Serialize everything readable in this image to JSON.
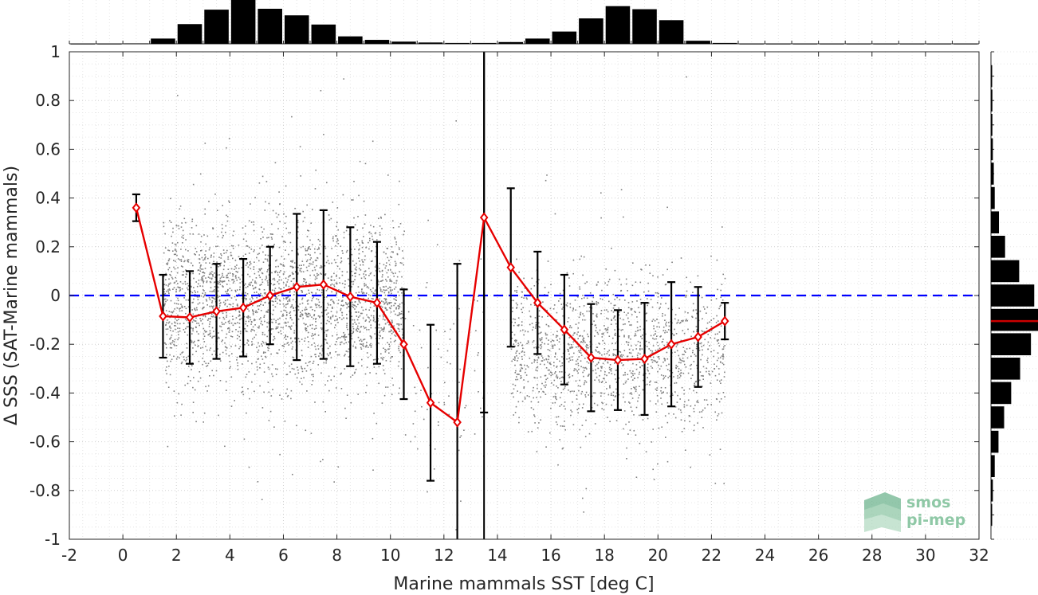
{
  "chart_data": {
    "type": "scatter",
    "title": "",
    "xlabel": "Marine mammals SST [deg C]",
    "ylabel": "Δ SSS (SAT-Marine mammals)",
    "xlim": [
      -2,
      32
    ],
    "ylim": [
      -1,
      1
    ],
    "x_ticks": [
      -2,
      0,
      2,
      4,
      6,
      8,
      10,
      12,
      14,
      16,
      18,
      20,
      22,
      24,
      26,
      28,
      30,
      32
    ],
    "y_ticks": [
      -1,
      -0.8,
      -0.6,
      -0.4,
      -0.2,
      0,
      0.2,
      0.4,
      0.6,
      0.8,
      1
    ],
    "y_tick_labels": [
      "-1",
      "-0.8",
      "-0.6",
      "-0.4",
      "-0.2",
      "0",
      "0.2",
      "0.4",
      "0.6",
      "0.8",
      "1"
    ],
    "grid": true,
    "zero_line": {
      "y": 0,
      "style": "dashed",
      "color": "#0000ff"
    },
    "vertical_line": {
      "x": 13.5,
      "color": "#000000"
    },
    "scatter_color": "#808080",
    "scatter_clusters": [
      {
        "x_range": [
          1.5,
          10.5
        ],
        "y_center": -0.02,
        "y_spread": 0.17,
        "weight": 0.62
      },
      {
        "x_range": [
          14.5,
          22.5
        ],
        "y_center": -0.23,
        "y_spread": 0.15,
        "weight": 0.36
      },
      {
        "x_range": [
          10.5,
          13.5
        ],
        "y_center": -0.35,
        "y_spread": 0.25,
        "weight": 0.02
      }
    ],
    "binned_series": {
      "color": "#e60000",
      "marker": "diamond",
      "x": [
        0.5,
        1.5,
        2.5,
        3.5,
        4.5,
        5.5,
        6.5,
        7.5,
        8.5,
        9.5,
        10.5,
        11.5,
        12.5,
        13.5,
        14.5,
        15.5,
        16.5,
        17.5,
        18.5,
        19.5,
        20.5,
        21.5,
        22.5
      ],
      "mean": [
        0.36,
        -0.085,
        -0.09,
        -0.065,
        -0.05,
        0.0,
        0.035,
        0.045,
        -0.005,
        -0.03,
        -0.2,
        -0.44,
        -0.52,
        0.32,
        0.115,
        -0.03,
        -0.14,
        -0.255,
        -0.265,
        -0.26,
        -0.2,
        -0.17,
        -0.105
      ],
      "std": [
        0.055,
        0.17,
        0.19,
        0.195,
        0.2,
        0.2,
        0.3,
        0.305,
        0.285,
        0.25,
        0.225,
        0.32,
        0.65,
        0.8,
        0.325,
        0.21,
        0.225,
        0.22,
        0.205,
        0.23,
        0.255,
        0.205,
        0.075
      ],
      "error_bar_color": "#000000"
    },
    "top_histogram": {
      "bin_centers": [
        -1.5,
        -0.5,
        0.5,
        1.5,
        2.5,
        3.5,
        4.5,
        5.5,
        6.5,
        7.5,
        8.5,
        9.5,
        10.5,
        11.5,
        12.5,
        13.5,
        14.5,
        15.5,
        16.5,
        17.5,
        18.5,
        19.5,
        20.5,
        21.5,
        22.5,
        23.5,
        24.5,
        25.5,
        26.5,
        27.5,
        28.5,
        29.5,
        30.5,
        31.5
      ],
      "relative_heights": [
        0.005,
        0.005,
        0.01,
        0.12,
        0.45,
        0.78,
        1.0,
        0.8,
        0.65,
        0.44,
        0.17,
        0.09,
        0.05,
        0.03,
        0.02,
        0.02,
        0.04,
        0.12,
        0.28,
        0.58,
        0.86,
        0.79,
        0.54,
        0.07,
        0.02,
        0.005,
        0.005,
        0.005,
        0.005,
        0.005,
        0.005,
        0.005,
        0.005,
        0.005
      ]
    },
    "right_histogram": {
      "bin_centers": [
        -0.9,
        -0.8,
        -0.7,
        -0.6,
        -0.5,
        -0.4,
        -0.3,
        -0.2,
        -0.1,
        0.0,
        0.1,
        0.2,
        0.3,
        0.4,
        0.5,
        0.6,
        0.7,
        0.8,
        0.9
      ],
      "relative_heights": [
        0.02,
        0.04,
        0.08,
        0.16,
        0.28,
        0.43,
        0.62,
        0.85,
        1.0,
        0.92,
        0.6,
        0.3,
        0.17,
        0.08,
        0.06,
        0.04,
        0.03,
        0.03,
        0.02
      ],
      "median_line": {
        "y": -0.105,
        "color": "#cc0000"
      }
    }
  },
  "logo": {
    "line1": "smos",
    "line2": "pi-mep",
    "color": "#8fc8a6"
  }
}
